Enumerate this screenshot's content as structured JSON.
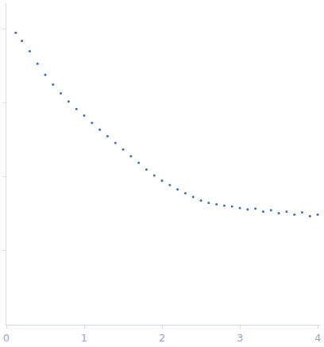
{
  "chart_data": {
    "type": "scatter",
    "marker": "circle",
    "color": "#3d6cc0",
    "x": [
      0.12,
      0.2,
      0.3,
      0.4,
      0.5,
      0.6,
      0.7,
      0.8,
      0.9,
      1.0,
      1.1,
      1.2,
      1.3,
      1.4,
      1.5,
      1.6,
      1.7,
      1.8,
      1.9,
      2.0,
      2.1,
      2.2,
      2.3,
      2.4,
      2.5,
      2.6,
      2.7,
      2.8,
      2.9,
      3.0,
      3.1,
      3.2,
      3.3,
      3.4,
      3.5,
      3.6,
      3.7,
      3.8,
      3.9,
      4.0
    ],
    "values": [
      3.95,
      3.84,
      3.7,
      3.53,
      3.38,
      3.25,
      3.13,
      3.02,
      2.92,
      2.83,
      2.73,
      2.64,
      2.55,
      2.46,
      2.37,
      2.28,
      2.19,
      2.1,
      2.02,
      1.95,
      1.89,
      1.83,
      1.78,
      1.73,
      1.68,
      1.65,
      1.63,
      1.61,
      1.6,
      1.58,
      1.56,
      1.57,
      1.53,
      1.55,
      1.51,
      1.53,
      1.49,
      1.52,
      1.47,
      1.49
    ],
    "xlim": [
      0,
      4.03
    ],
    "xticks": [
      0,
      1,
      2,
      3,
      4
    ],
    "ylim": [
      0,
      4.35
    ],
    "yticks": [
      1,
      2,
      3,
      4
    ],
    "grid": false,
    "tick_labels": "x"
  }
}
